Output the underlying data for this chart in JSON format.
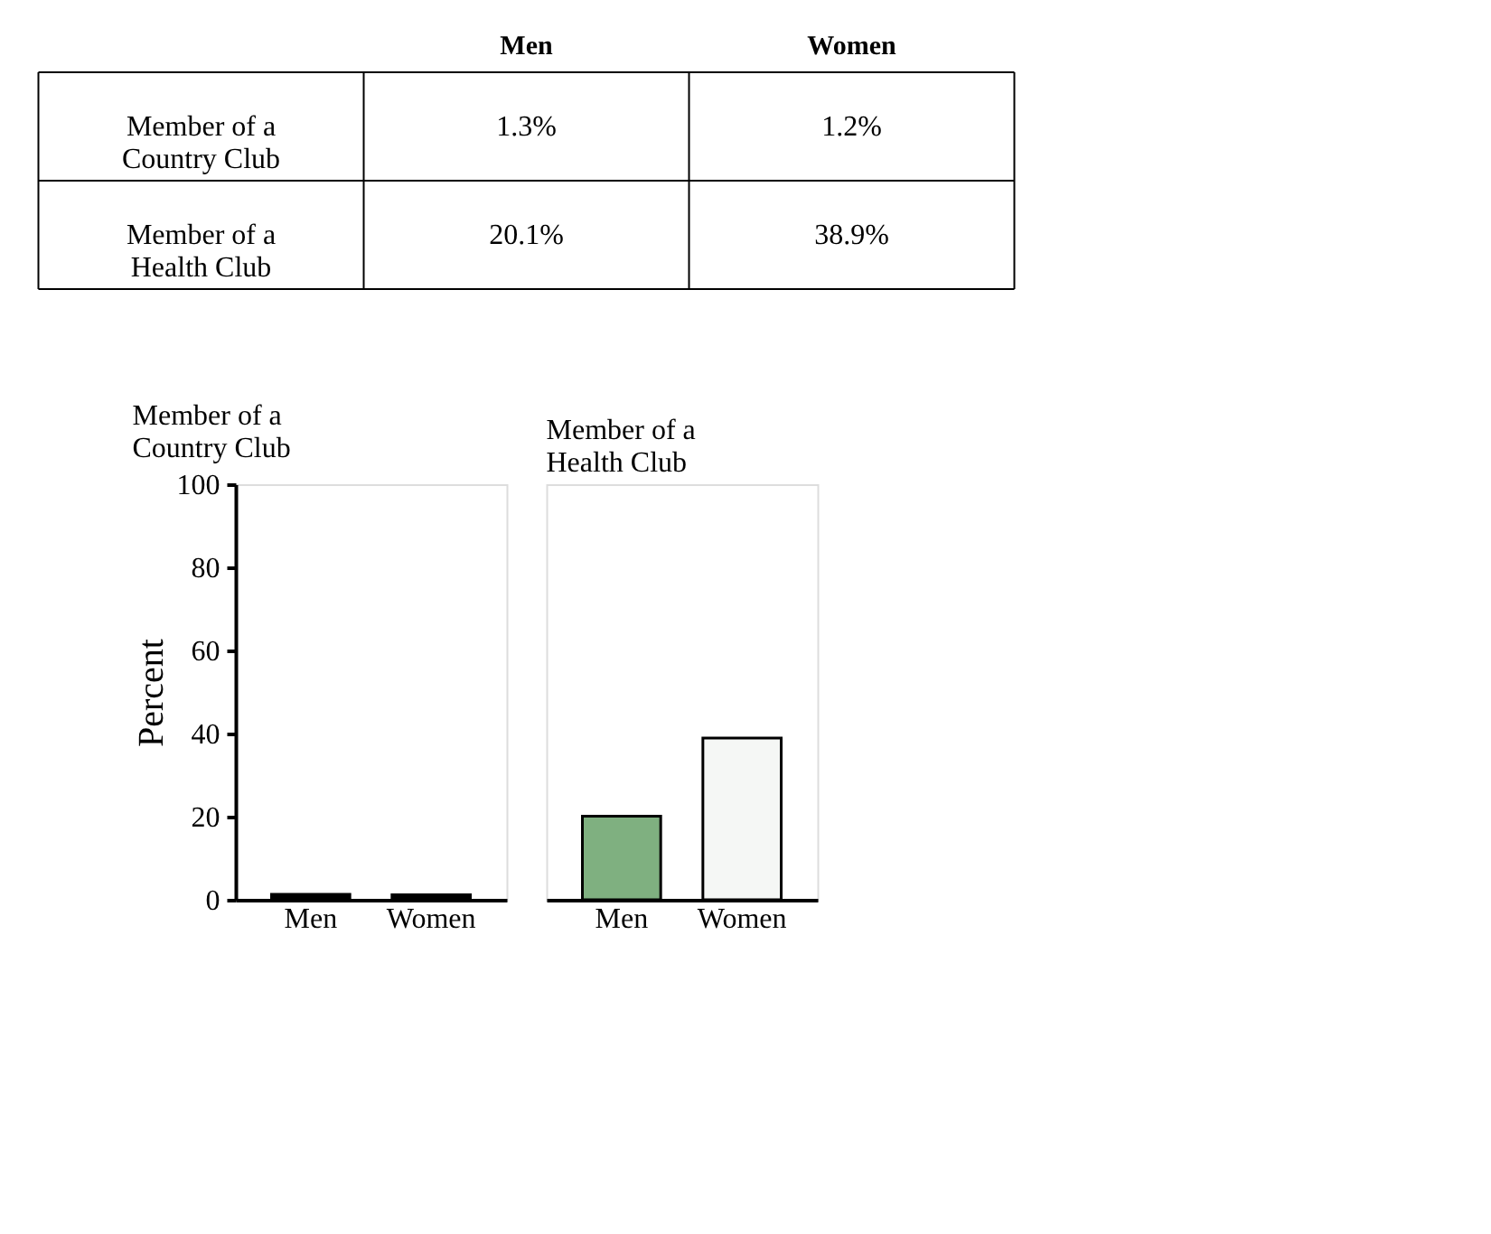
{
  "chart_data": [
    {
      "type": "other",
      "categories": [
        "Men",
        "Women"
      ],
      "y_categories": [
        "Member of a Country Club",
        "Member of a Health Club"
      ],
      "cell_labels": [
        [
          "1.3%",
          "1.2%"
        ],
        [
          "20.1%",
          "38.9%"
        ]
      ]
    },
    {
      "type": "bar",
      "title": "Member of a Country Club",
      "categories": [
        "Men",
        "Women"
      ],
      "values": [
        1.3,
        1.2
      ],
      "colors": [
        "#000000",
        "#000000"
      ],
      "ylabel": "Percent",
      "ylim": [
        0,
        100
      ],
      "yticks": [
        0,
        20,
        40,
        60,
        80,
        100
      ],
      "grid": false,
      "legend": false
    },
    {
      "type": "bar",
      "title": "Member of a Health Club",
      "categories": [
        "Men",
        "Women"
      ],
      "values": [
        20.1,
        38.9
      ],
      "colors": [
        "#7fb080",
        "#f5f7f5"
      ],
      "ylim": [
        0,
        100
      ],
      "yticks": [
        0,
        20,
        40,
        60,
        80,
        100
      ],
      "tick_labels": "x",
      "grid": false,
      "legend": false
    }
  ]
}
